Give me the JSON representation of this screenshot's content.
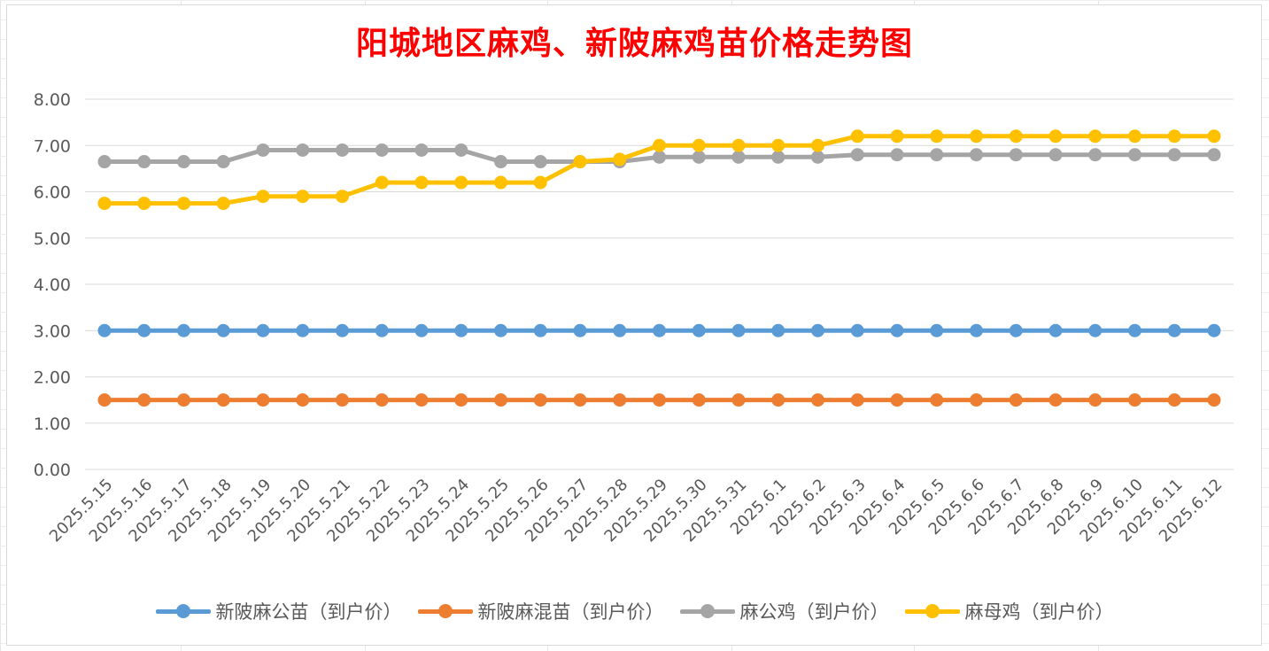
{
  "title": "阳城地区麻鸡、新陂麻鸡苗价格走势图",
  "colors": {
    "title": "#ff0000",
    "gridline": "#d9d9d9",
    "axis_text": "#595959",
    "series": [
      "#5b9bd5",
      "#ed7d31",
      "#a5a5a5",
      "#ffc000"
    ]
  },
  "chart_data": {
    "type": "line",
    "title": "阳城地区麻鸡、新陂麻鸡苗价格走势图",
    "xlabel": "",
    "ylabel": "",
    "ylim": [
      0,
      8
    ],
    "yticks": [
      "0.00",
      "1.00",
      "2.00",
      "3.00",
      "4.00",
      "5.00",
      "6.00",
      "7.00",
      "8.00"
    ],
    "grid": true,
    "legend_position": "bottom",
    "categories": [
      "2025.5.15",
      "2025.5.16",
      "2025.5.17",
      "2025.5.18",
      "2025.5.19",
      "2025.5.20",
      "2025.5.21",
      "2025.5.22",
      "2025.5.23",
      "2025.5.24",
      "2025.5.25",
      "2025.5.26",
      "2025.5.27",
      "2025.5.28",
      "2025.5.29",
      "2025.5.30",
      "2025.5.31",
      "2025.6.1",
      "2025.6.2",
      "2025.6.3",
      "2025.6.4",
      "2025.6.5",
      "2025.6.6",
      "2025.6.7",
      "2025.6.8",
      "2025.6.9",
      "2025.6.10",
      "2025.6.11",
      "2025.6.12"
    ],
    "series": [
      {
        "name": "新陂麻公苗（到户价）",
        "color": "#5b9bd5",
        "values": [
          3,
          3,
          3,
          3,
          3,
          3,
          3,
          3,
          3,
          3,
          3,
          3,
          3,
          3,
          3,
          3,
          3,
          3,
          3,
          3,
          3,
          3,
          3,
          3,
          3,
          3,
          3,
          3,
          3
        ]
      },
      {
        "name": "新陂麻混苗（到户价）",
        "color": "#ed7d31",
        "values": [
          1.5,
          1.5,
          1.5,
          1.5,
          1.5,
          1.5,
          1.5,
          1.5,
          1.5,
          1.5,
          1.5,
          1.5,
          1.5,
          1.5,
          1.5,
          1.5,
          1.5,
          1.5,
          1.5,
          1.5,
          1.5,
          1.5,
          1.5,
          1.5,
          1.5,
          1.5,
          1.5,
          1.5,
          1.5
        ]
      },
      {
        "name": "麻公鸡（到户价）",
        "color": "#a5a5a5",
        "values": [
          6.65,
          6.65,
          6.65,
          6.65,
          6.9,
          6.9,
          6.9,
          6.9,
          6.9,
          6.9,
          6.65,
          6.65,
          6.65,
          6.65,
          6.75,
          6.75,
          6.75,
          6.75,
          6.75,
          6.8,
          6.8,
          6.8,
          6.8,
          6.8,
          6.8,
          6.8,
          6.8,
          6.8,
          6.8
        ]
      },
      {
        "name": "麻母鸡（到户价）",
        "color": "#ffc000",
        "values": [
          5.75,
          5.75,
          5.75,
          5.75,
          5.9,
          5.9,
          5.9,
          6.2,
          6.2,
          6.2,
          6.2,
          6.2,
          6.65,
          6.7,
          7.0,
          7.0,
          7.0,
          7.0,
          7.0,
          7.2,
          7.2,
          7.2,
          7.2,
          7.2,
          7.2,
          7.2,
          7.2,
          7.2,
          7.2
        ]
      }
    ]
  }
}
